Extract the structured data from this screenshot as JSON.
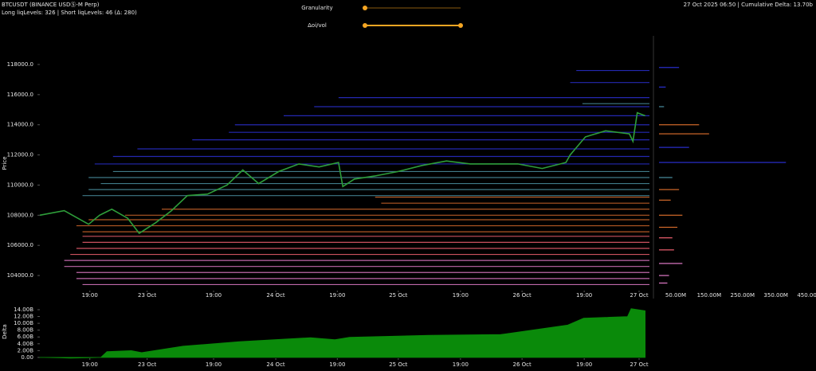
{
  "header": {
    "symbol": "BTCUSDT (BINANCE USDⓈ-M Perp)",
    "levels": "Long liqLevels: 326 | Short liqLevels: 46 (Δ: 280)",
    "status": "27 Oct 2025 06:50 | Cumulative Delta: 13.70b",
    "controls": [
      "Granularity",
      "Δoi/vol"
    ]
  },
  "chart_data": [
    {
      "type": "line",
      "y_label": "Price",
      "color": "#2e9e3a",
      "x": [
        0,
        4,
        8,
        9.8,
        11.8,
        14.4,
        16.3,
        19,
        21.6,
        24.2,
        27.5,
        30.7,
        33.3,
        35.9,
        39.2,
        42.5,
        45.8,
        49,
        49.7,
        51.6,
        54.9,
        58.8,
        62.7,
        66.7,
        70.6,
        74.5,
        78.4,
        82.4,
        86.3,
        87,
        89.5,
        92.8,
        96.7,
        97.3,
        98,
        99.3
      ],
      "values": [
        108000,
        108300,
        107400,
        108000,
        108400,
        107800,
        106800,
        107500,
        108300,
        109300,
        109400,
        110000,
        111000,
        110100,
        110900,
        111400,
        111200,
        111500,
        109900,
        110400,
        110600,
        110900,
        111300,
        111600,
        111400,
        111400,
        111400,
        111100,
        111500,
        112000,
        113200,
        113600,
        113400,
        112900,
        114800,
        114600
      ],
      "xlim": [
        0,
        100
      ],
      "ylim": [
        103000,
        119900
      ],
      "xticks": [
        {
          "value": 8.2,
          "label": "19:00"
        },
        {
          "value": 17.6,
          "label": "23 Oct"
        },
        {
          "value": 28.5,
          "label": "19:00"
        },
        {
          "value": 38.7,
          "label": "24 Oct"
        },
        {
          "value": 48.8,
          "label": "19:00"
        },
        {
          "value": 58.8,
          "label": "25 Oct"
        },
        {
          "value": 69,
          "label": "19:00"
        },
        {
          "value": 79.1,
          "label": "26 Oct"
        },
        {
          "value": 89.3,
          "label": "19:00"
        },
        {
          "value": 98.3,
          "label": "27 Oct"
        }
      ],
      "yticks": [
        {
          "value": 104000,
          "label": "104000.0"
        },
        {
          "value": 106000,
          "label": "106000.0"
        },
        {
          "value": 108000,
          "label": "108000.0"
        },
        {
          "value": 110000,
          "label": "110000.0"
        },
        {
          "value": 112000,
          "label": "112000.0"
        },
        {
          "value": 114000,
          "label": "114000.0"
        },
        {
          "value": 116000,
          "label": "116000.0"
        },
        {
          "value": 118000,
          "label": "118000.0"
        }
      ]
    },
    {
      "type": "area",
      "y_label": "Delta",
      "color": "#0a8a0a",
      "x": [
        0,
        3,
        5,
        8,
        10,
        11,
        15,
        16.7,
        17,
        23.5,
        32.7,
        44.4,
        48.4,
        50.8,
        63.8,
        75.6,
        86.6,
        89.2,
        96.4,
        97,
        99.3
      ],
      "values": [
        0,
        -0.1,
        -0.2,
        -0.1,
        0,
        1.7,
        2.0,
        1.4,
        1.5,
        3.3,
        4.6,
        5.8,
        5.2,
        5.9,
        6.5,
        6.7,
        9.5,
        11.5,
        12,
        14.3,
        13.7
      ],
      "xlim": [
        0,
        100
      ],
      "ylim": [
        -0.25,
        15.4
      ],
      "xticks": [
        {
          "value": 8.2,
          "label": "19:00"
        },
        {
          "value": 17.6,
          "label": "23 Oct"
        },
        {
          "value": 28.5,
          "label": "19:00"
        },
        {
          "value": 38.7,
          "label": "24 Oct"
        },
        {
          "value": 48.8,
          "label": "19:00"
        },
        {
          "value": 58.8,
          "label": "25 Oct"
        },
        {
          "value": 69,
          "label": "19:00"
        },
        {
          "value": 79.1,
          "label": "26 Oct"
        },
        {
          "value": 89.3,
          "label": "19:00"
        },
        {
          "value": 98.3,
          "label": "27 Oct"
        }
      ],
      "yticks": [
        {
          "value": 0,
          "label": "0.00"
        },
        {
          "value": 2,
          "label": "2.00B"
        },
        {
          "value": 4,
          "label": "4.00B"
        },
        {
          "value": 6,
          "label": "6.00B"
        },
        {
          "value": 8,
          "label": "8.00B"
        },
        {
          "value": 10,
          "label": "10.00B"
        },
        {
          "value": 12,
          "label": "12.00B"
        },
        {
          "value": 14,
          "label": "14.00B"
        }
      ]
    },
    {
      "type": "hlines",
      "series": [
        {
          "color": "#2a2fd0",
          "values": [
            115800,
            115200,
            114600,
            114000,
            113500,
            113000,
            112400,
            111900,
            111400,
            116800,
            117600
          ],
          "x": [
            49,
            45,
            40,
            32,
            31,
            25,
            16,
            12,
            9,
            87,
            88
          ]
        },
        {
          "color": "#4a8fa0",
          "values": [
            110900,
            110500,
            110100,
            109700,
            109300,
            115400
          ],
          "x": [
            12,
            8,
            10,
            8,
            7,
            89
          ]
        },
        {
          "color": "#d2692a",
          "values": [
            109200,
            108800,
            108400,
            108000,
            107700,
            107300,
            106900
          ],
          "x": [
            55,
            56,
            20,
            14,
            8,
            6,
            7
          ]
        },
        {
          "color": "#f06070",
          "values": [
            106600,
            106200,
            105800,
            105400
          ],
          "x": [
            7,
            7,
            6,
            5
          ]
        },
        {
          "color": "#e07ac8",
          "values": [
            105000,
            104600,
            104200,
            103800,
            103400
          ],
          "x": [
            4,
            4,
            6,
            6,
            7
          ]
        }
      ]
    },
    {
      "type": "barh",
      "y": [
        117800,
        116500,
        115200,
        114000,
        113400,
        112500,
        111500,
        110500,
        109700,
        109000,
        108000,
        107200,
        106500,
        105700,
        104800,
        104000,
        103500
      ],
      "values": [
        60,
        20,
        15,
        120,
        150,
        90,
        380,
        40,
        60,
        35,
        70,
        55,
        40,
        45,
        70,
        30,
        25
      ],
      "colors": [
        "#2a2fd0",
        "#2a2fd0",
        "#4a8fa0",
        "#d2692a",
        "#d2692a",
        "#2a2fd0",
        "#2a2fd0",
        "#4a8fa0",
        "#d2692a",
        "#d2692a",
        "#d2692a",
        "#d2692a",
        "#f06070",
        "#f06070",
        "#e07ac8",
        "#e07ac8",
        "#e07ac8"
      ],
      "xlim": [
        0,
        470
      ],
      "xticks": [
        {
          "value": 50,
          "label": "50.00M"
        },
        {
          "value": 150,
          "label": "150.00M"
        },
        {
          "value": 250,
          "label": "250.00M"
        },
        {
          "value": 350,
          "label": "350.00M"
        },
        {
          "value": 450,
          "label": "450.00M"
        }
      ]
    }
  ]
}
